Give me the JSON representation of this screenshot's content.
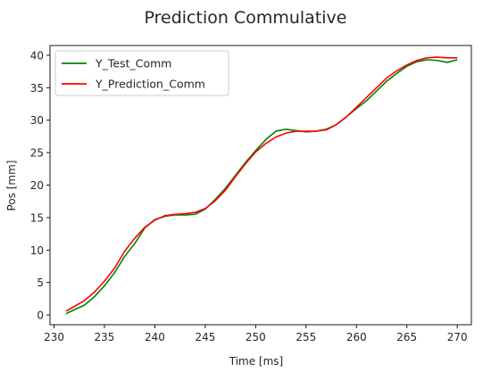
{
  "chart_data": {
    "type": "line",
    "title": "Prediction Commulative",
    "xlabel": "Time [ms]",
    "ylabel": "Pos [mm]",
    "xlim": [
      229.6,
      271.4
    ],
    "ylim": [
      -1.5,
      41.5
    ],
    "xticks": [
      230,
      235,
      240,
      245,
      250,
      255,
      260,
      265,
      270
    ],
    "yticks": [
      0,
      5,
      10,
      15,
      20,
      25,
      30,
      35,
      40
    ],
    "grid": false,
    "legend_position": "upper-left",
    "series": [
      {
        "name": "Y_Test_Comm",
        "color": "#008000",
        "x": [
          231.2,
          232,
          233,
          234,
          235,
          236,
          237,
          238,
          239,
          240,
          241,
          242,
          243,
          244,
          245,
          246,
          247,
          248,
          249,
          250,
          251,
          252,
          253,
          254,
          255,
          256,
          257,
          258,
          259,
          260,
          261,
          262,
          263,
          264,
          265,
          266,
          267,
          268,
          269,
          270
        ],
        "values": [
          0.2,
          0.8,
          1.5,
          2.8,
          4.5,
          6.5,
          9.0,
          11.0,
          13.4,
          14.7,
          15.2,
          15.4,
          15.4,
          15.5,
          16.3,
          17.8,
          19.5,
          21.5,
          23.5,
          25.3,
          27.0,
          28.3,
          28.6,
          28.4,
          28.2,
          28.3,
          28.6,
          29.3,
          30.5,
          31.8,
          33.0,
          34.5,
          36.0,
          37.2,
          38.3,
          39.0,
          39.3,
          39.2,
          38.9,
          39.3
        ]
      },
      {
        "name": "Y_Prediction_Comm",
        "color": "#ff0000",
        "x": [
          231.2,
          232,
          233,
          234,
          235,
          236,
          237,
          238,
          239,
          240,
          241,
          242,
          243,
          244,
          245,
          246,
          247,
          248,
          249,
          250,
          251,
          252,
          253,
          254,
          255,
          256,
          257,
          258,
          259,
          260,
          261,
          262,
          263,
          264,
          265,
          266,
          267,
          268,
          269,
          270
        ],
        "values": [
          0.6,
          1.3,
          2.2,
          3.5,
          5.2,
          7.2,
          9.8,
          11.8,
          13.5,
          14.6,
          15.3,
          15.5,
          15.6,
          15.8,
          16.4,
          17.6,
          19.2,
          21.3,
          23.3,
          25.1,
          26.4,
          27.4,
          28.0,
          28.3,
          28.3,
          28.3,
          28.5,
          29.3,
          30.5,
          32.0,
          33.5,
          35.0,
          36.5,
          37.6,
          38.5,
          39.2,
          39.6,
          39.7,
          39.6,
          39.6
        ]
      }
    ]
  }
}
